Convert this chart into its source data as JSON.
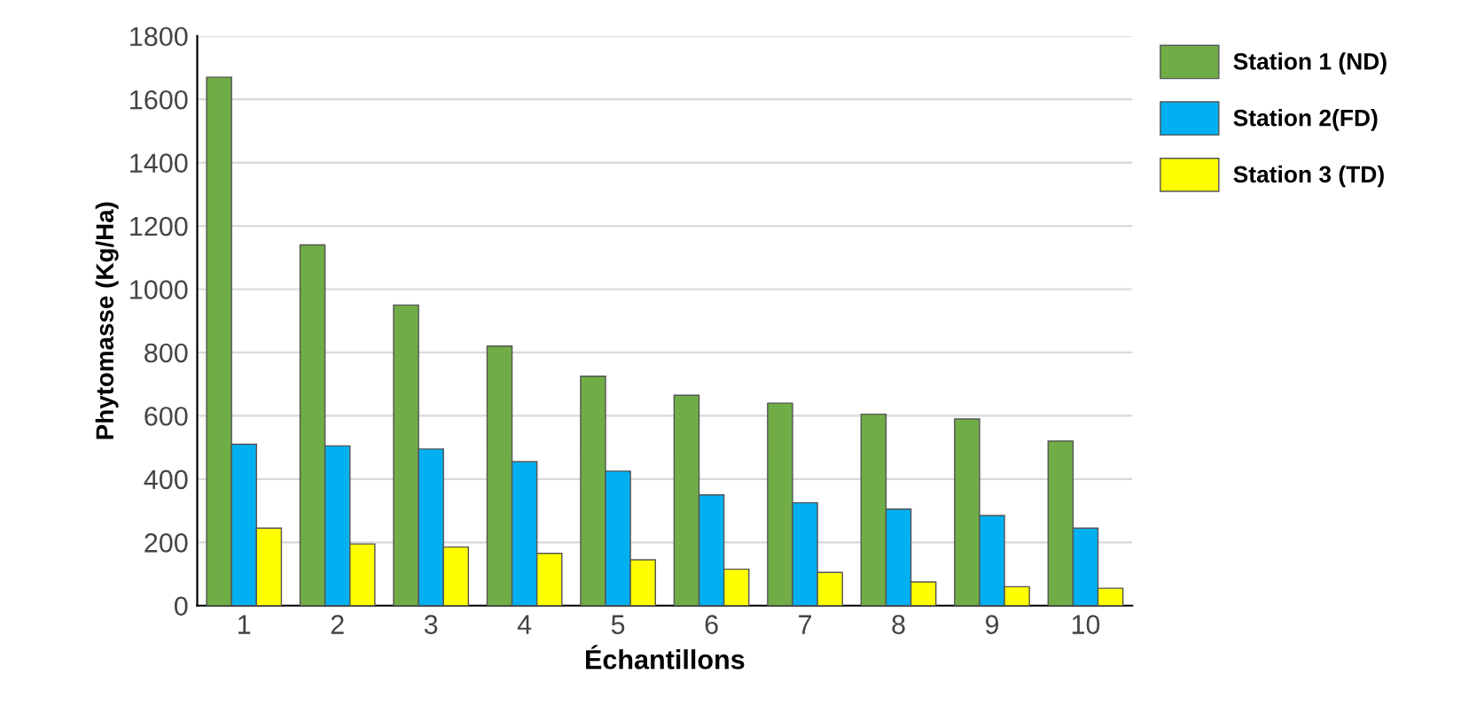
{
  "chart_data": {
    "type": "bar",
    "xlabel": "Échantillons",
    "ylabel": "Phytomasse (Kg/Ha)",
    "categories": [
      "1",
      "2",
      "3",
      "4",
      "5",
      "6",
      "7",
      "8",
      "9",
      "10"
    ],
    "series": [
      {
        "name": "Station 1 (ND)",
        "color": "#70ad47",
        "values": [
          1670,
          1140,
          950,
          820,
          725,
          665,
          640,
          605,
          590,
          520
        ]
      },
      {
        "name": "Station 2(FD)",
        "color": "#00b0f0",
        "values": [
          510,
          505,
          495,
          455,
          425,
          350,
          325,
          305,
          285,
          245
        ]
      },
      {
        "name": "Station 3 (TD)",
        "color": "#ffff00",
        "values": [
          245,
          195,
          185,
          165,
          145,
          115,
          105,
          75,
          60,
          55
        ]
      }
    ],
    "ylim": [
      0,
      1800
    ],
    "yticks": [
      0,
      200,
      400,
      600,
      800,
      1000,
      1200,
      1400,
      1600,
      1800
    ],
    "grid": "y",
    "legend": "top right"
  }
}
